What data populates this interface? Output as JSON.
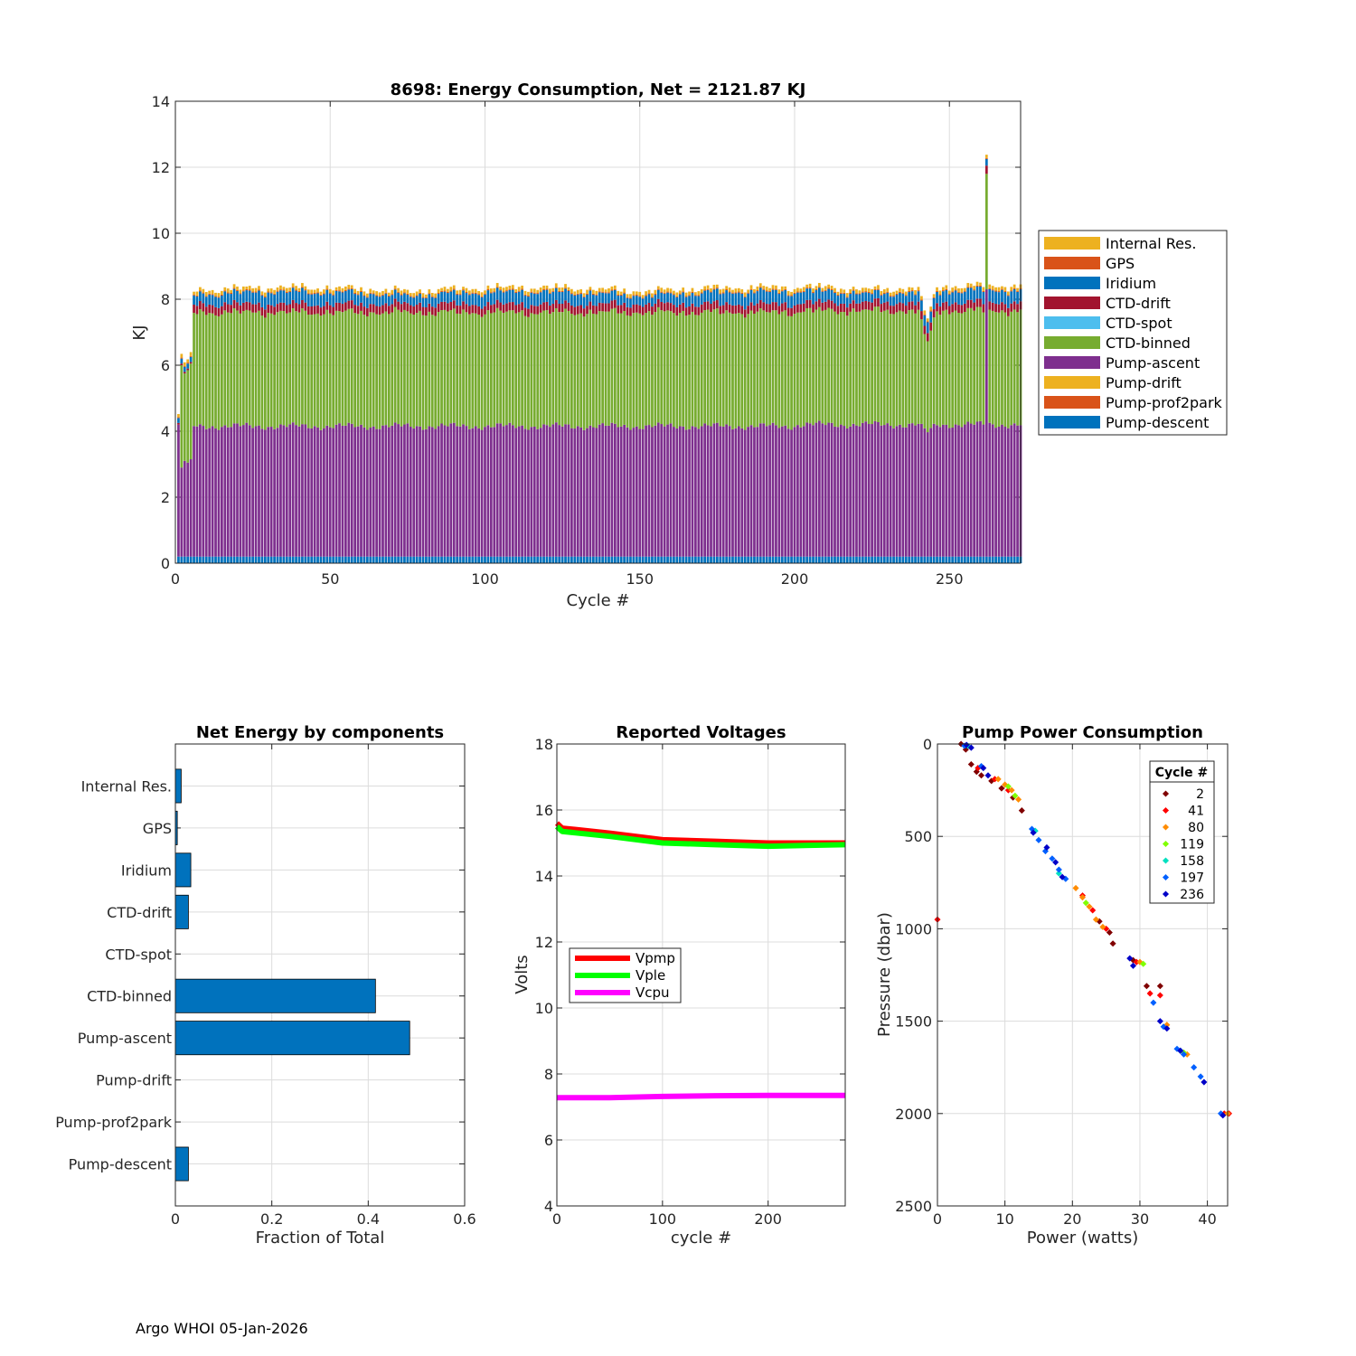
{
  "footer": "Argo WHOI 05-Jan-2026",
  "colors": {
    "Internal Res.": "#EDB120",
    "GPS": "#D95319",
    "Iridium": "#0072BD",
    "CTD-drift": "#A2142F",
    "CTD-spot": "#4DBEEE",
    "CTD-binned": "#77AC30",
    "Pump-ascent": "#7E2F8E",
    "Pump-drift": "#EDB120",
    "Pump-prof2park": "#D95319",
    "Pump-descent": "#0072BD",
    "grid": "#dcdcdc"
  },
  "chart_data": [
    {
      "id": "energy",
      "type": "bar",
      "stacked": true,
      "title": "8698: Energy Consumption,  Net = 2121.87 KJ",
      "xlabel": "Cycle #",
      "ylabel": "KJ",
      "xlim": [
        0,
        273
      ],
      "ylim": [
        0,
        14
      ],
      "xticks": [
        0,
        50,
        100,
        150,
        200,
        250
      ],
      "yticks": [
        0,
        2,
        4,
        6,
        8,
        10,
        12,
        14
      ],
      "legend": [
        "Internal Res.",
        "GPS",
        "Iridium",
        "CTD-drift",
        "CTD-spot",
        "CTD-binned",
        "Pump-ascent",
        "Pump-drift",
        "Pump-prof2park",
        "Pump-descent"
      ],
      "legend_position": "right",
      "n_cycles": 273,
      "typical_cycle_KJ": {
        "Pump-descent": 0.2,
        "Pump-prof2park": 0.0,
        "Pump-drift": 0.0,
        "Pump-ascent": 3.75,
        "CTD-binned": 3.45,
        "CTD-spot": 0.0,
        "CTD-drift": 0.25,
        "Iridium": 0.3,
        "GPS": 0.03,
        "Internal Res.": 0.1
      },
      "notes": "Cycles 1-5 lower (total about 4.3-6.4 KJ); cycles ~241-245 dip to about 7.2-7.7 KJ; cycle 262 spike to about 12.3 KJ (mostly CTD-binned)."
    },
    {
      "id": "net",
      "type": "bar",
      "orientation": "horizontal",
      "title": "Net Energy by components",
      "xlabel": "Fraction of Total",
      "xlim": [
        0,
        0.6
      ],
      "xticks": [
        0,
        0.2,
        0.4,
        0.6
      ],
      "xtick_labels": [
        "0",
        "0.2",
        "0.4",
        "0.6"
      ],
      "categories": [
        "Internal Res.",
        "GPS",
        "Iridium",
        "CTD-drift",
        "CTD-spot",
        "CTD-binned",
        "Pump-ascent",
        "Pump-drift",
        "Pump-prof2park",
        "Pump-descent"
      ],
      "values": [
        0.012,
        0.004,
        0.032,
        0.027,
        0.0,
        0.415,
        0.486,
        0.0,
        0.0,
        0.027
      ]
    },
    {
      "id": "volts",
      "type": "line",
      "title": "Reported Voltages",
      "xlabel": "cycle #",
      "ylabel": "Volts",
      "xlim": [
        0,
        273
      ],
      "ylim": [
        4,
        18
      ],
      "xticks": [
        0,
        100,
        200
      ],
      "yticks": [
        4,
        6,
        8,
        10,
        12,
        14,
        16,
        18
      ],
      "legend_position": "middle-left",
      "series": [
        {
          "name": "Vpmp",
          "color": "#FF0000",
          "x": [
            0,
            5,
            50,
            100,
            150,
            200,
            273
          ],
          "values": [
            15.6,
            15.45,
            15.3,
            15.1,
            15.05,
            15.0,
            15.0
          ]
        },
        {
          "name": "Vple",
          "color": "#00FF00",
          "x": [
            0,
            5,
            50,
            100,
            150,
            200,
            273
          ],
          "values": [
            15.5,
            15.35,
            15.2,
            15.0,
            14.95,
            14.9,
            14.95
          ]
        },
        {
          "name": "Vcpu",
          "color": "#FF00FF",
          "x": [
            0,
            50,
            100,
            150,
            200,
            273
          ],
          "values": [
            7.28,
            7.28,
            7.32,
            7.34,
            7.35,
            7.35
          ]
        }
      ]
    },
    {
      "id": "pump",
      "type": "scatter",
      "title": "Pump Power Consumption",
      "xlabel": "Power (watts)",
      "ylabel": "Pressure (dbar)",
      "xlim": [
        0,
        43
      ],
      "ylim": [
        0,
        2500
      ],
      "y_reversed": true,
      "xticks": [
        0,
        10,
        20,
        30,
        40
      ],
      "yticks": [
        0,
        500,
        1000,
        1500,
        2000,
        2500
      ],
      "legend_title": "Cycle #",
      "legend_position": "top-right",
      "series": [
        {
          "name": "2",
          "color": "#800000",
          "x": [
            3.5,
            4.2,
            5.0,
            5.8,
            6.5,
            8.0,
            9.5,
            11.2,
            12.5,
            24.0,
            25.5,
            26.0,
            29.0,
            31.0,
            33.0
          ],
          "values": [
            0,
            30,
            110,
            150,
            170,
            200,
            240,
            290,
            360,
            960,
            1020,
            1080,
            1170,
            1310,
            1310
          ]
        },
        {
          "name": "41",
          "color": "#FF0000",
          "x": [
            0.0,
            6.0,
            8.5,
            10.5,
            21.5,
            23.0,
            25.0,
            29.5,
            31.5,
            33.0,
            42.5,
            43.2
          ],
          "values": [
            950,
            130,
            190,
            250,
            820,
            900,
            1000,
            1180,
            1350,
            1360,
            2000,
            2000
          ]
        },
        {
          "name": "80",
          "color": "#FF8C00",
          "x": [
            9.0,
            10.0,
            11.0,
            12.0,
            20.5,
            21.5,
            22.5,
            23.5,
            24.5,
            30.0,
            34.0,
            37.0,
            43.0
          ],
          "values": [
            190,
            220,
            250,
            300,
            780,
            830,
            880,
            950,
            990,
            1180,
            1520,
            1680,
            2000
          ]
        },
        {
          "name": "119",
          "color": "#80FF00",
          "x": [
            10.5,
            11.5,
            22.0,
            30.5,
            36.5
          ],
          "values": [
            230,
            280,
            860,
            1190,
            1670
          ]
        },
        {
          "name": "158",
          "color": "#00E0C0",
          "x": [
            4.5,
            14.5,
            18.0,
            36.0
          ],
          "values": [
            10,
            470,
            700,
            1660
          ]
        },
        {
          "name": "197",
          "color": "#0060FF",
          "x": [
            4.0,
            6.5,
            14.0,
            15.0,
            16.0,
            17.0,
            18.0,
            19.0,
            32.0,
            33.5,
            35.5,
            36.5,
            38.0,
            39.0,
            42.0
          ],
          "values": [
            10,
            120,
            460,
            520,
            580,
            620,
            680,
            730,
            1400,
            1530,
            1650,
            1680,
            1750,
            1800,
            2000
          ]
        },
        {
          "name": "236",
          "color": "#0000C8",
          "x": [
            4.3,
            5.0,
            6.8,
            7.5,
            14.2,
            16.2,
            17.5,
            18.5,
            28.5,
            29.0,
            33.0,
            34.0,
            36.0,
            39.5,
            42.3
          ],
          "values": [
            5,
            20,
            130,
            170,
            480,
            560,
            640,
            720,
            1160,
            1200,
            1500,
            1540,
            1660,
            1830,
            2010
          ]
        }
      ]
    }
  ]
}
